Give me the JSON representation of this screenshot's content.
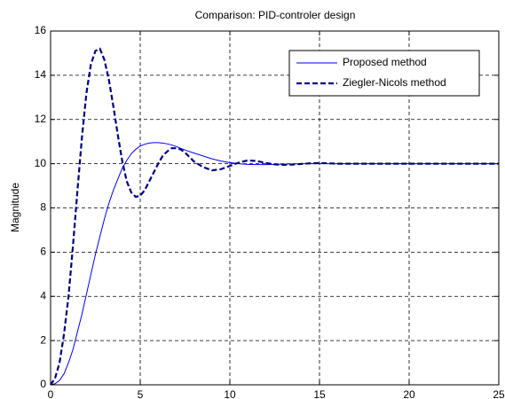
{
  "chart_data": {
    "type": "line",
    "title": "Comparison: PID-controler design",
    "ylabel": "Magnitude",
    "x": [
      0,
      0.25,
      0.5,
      0.75,
      1,
      1.25,
      1.5,
      1.75,
      2,
      2.25,
      2.5,
      2.75,
      3,
      3.25,
      3.5,
      3.75,
      4,
      4.25,
      4.5,
      4.75,
      5,
      5.25,
      5.5,
      5.75,
      6,
      6.25,
      6.5,
      6.75,
      7,
      7.25,
      7.5,
      7.75,
      8,
      8.5,
      9,
      9.5,
      10,
      10.5,
      11,
      11.5,
      12,
      12.5,
      13,
      13.5,
      14,
      14.5,
      15,
      15.5,
      16,
      18,
      20,
      22,
      25
    ],
    "series": [
      {
        "name": "Proposed method",
        "color": "#0000ff",
        "dashed": false,
        "values": [
          0,
          0.05,
          0.2,
          0.5,
          1.0,
          1.6,
          2.4,
          3.2,
          4.1,
          5.0,
          5.9,
          6.7,
          7.5,
          8.2,
          8.8,
          9.3,
          9.8,
          10.15,
          10.45,
          10.65,
          10.8,
          10.88,
          10.93,
          10.95,
          10.95,
          10.93,
          10.9,
          10.85,
          10.78,
          10.7,
          10.62,
          10.55,
          10.48,
          10.35,
          10.22,
          10.12,
          10.05,
          10.0,
          9.97,
          9.96,
          9.96,
          9.97,
          9.98,
          9.99,
          10,
          10,
          10,
          10,
          10,
          10,
          10,
          10,
          10
        ]
      },
      {
        "name": "Ziegler-Nicols method",
        "color": "#00007f",
        "dashed": true,
        "values": [
          0,
          0.3,
          1.0,
          2.3,
          4.0,
          6.3,
          8.8,
          11.2,
          13.2,
          14.5,
          15.1,
          15.2,
          14.7,
          13.8,
          12.6,
          11.3,
          10.1,
          9.2,
          8.7,
          8.5,
          8.55,
          8.8,
          9.2,
          9.6,
          10.0,
          10.35,
          10.55,
          10.7,
          10.7,
          10.65,
          10.5,
          10.3,
          10.1,
          9.85,
          9.7,
          9.75,
          9.9,
          10.05,
          10.15,
          10.12,
          10.03,
          9.97,
          9.95,
          9.96,
          9.99,
          10.02,
          10.03,
          10.02,
          10.0,
          10,
          10,
          10,
          10
        ]
      }
    ],
    "xlim": [
      0,
      25
    ],
    "xticks": [
      0,
      5,
      10,
      15,
      20,
      25
    ],
    "ylim": [
      0,
      16
    ],
    "yticks": [
      0,
      2,
      4,
      6,
      8,
      10,
      12,
      14,
      16
    ],
    "grid": true,
    "legend": "upper right"
  }
}
